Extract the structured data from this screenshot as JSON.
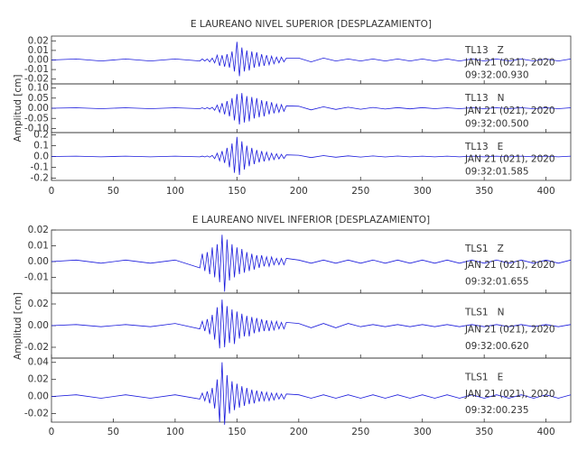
{
  "chart_data": [
    {
      "type": "line",
      "title": "E LAUREANO NIVEL SUPERIOR [DESPLAZAMIENTO]",
      "ylabel": "Amplitud [cm]",
      "xlim": [
        0,
        420
      ],
      "xticks": [
        0,
        50,
        100,
        150,
        200,
        250,
        300,
        350,
        400
      ],
      "x": [
        0,
        20,
        40,
        60,
        80,
        100,
        120,
        122,
        124,
        126,
        128,
        130,
        132,
        134,
        136,
        138,
        140,
        142,
        144,
        146,
        148,
        150,
        152,
        154,
        156,
        158,
        160,
        162,
        164,
        166,
        168,
        170,
        172,
        174,
        176,
        178,
        180,
        182,
        184,
        186,
        188,
        190,
        200,
        210,
        220,
        230,
        240,
        250,
        260,
        270,
        280,
        290,
        300,
        310,
        320,
        330,
        340,
        350,
        360,
        370,
        380,
        390,
        400,
        410,
        420
      ],
      "panels": [
        {
          "annotations": [
            "TL13   Z",
            "JAN 21 (021), 2020",
            "09:32:00.930"
          ],
          "color": "#1a1adc",
          "ylim": [
            -0.025,
            0.025
          ],
          "yticks": [
            {
              "value": 0.02,
              "label": "0.02"
            },
            0.01,
            {
              "value": 0,
              "label": "0.00"
            },
            -0.01,
            -0.02
          ],
          "values": [
            0,
            0.001,
            -0.001,
            0.001,
            -0.001,
            0.001,
            -0.001,
            0.001,
            -0.001,
            0.001,
            -0.002,
            0.002,
            -0.003,
            0.005,
            -0.006,
            0.005,
            -0.007,
            0.006,
            -0.008,
            0.009,
            -0.012,
            0.019,
            -0.017,
            0.013,
            -0.012,
            0.01,
            -0.011,
            0.009,
            -0.008,
            0.008,
            -0.007,
            0.006,
            -0.006,
            0.005,
            -0.005,
            0.004,
            -0.004,
            0.003,
            -0.003,
            0.003,
            -0.002,
            0.002,
            0.002,
            -0.002,
            0.002,
            -0.001,
            0.001,
            -0.001,
            0.001,
            -0.001,
            0.001,
            -0.001,
            0.001,
            -0.001,
            0.001,
            -0.001,
            0.001,
            -0.001,
            0.001,
            -0.001,
            0.001,
            -0.001,
            0.001,
            -0.001,
            0.001
          ]
        },
        {
          "annotations": [
            "TL13   N",
            "JAN 21 (021), 2020",
            "09:32:00.500"
          ],
          "color": "#1a1adc",
          "ylim": [
            -0.12,
            0.12
          ],
          "yticks": [
            {
              "value": 0.1,
              "label": "0.10"
            },
            0.05,
            {
              "value": 0,
              "label": "0.00"
            },
            -0.05,
            {
              "value": -0.1,
              "label": "-0.10"
            }
          ],
          "values": [
            0,
            0.002,
            -0.002,
            0.002,
            -0.002,
            0.002,
            -0.002,
            0.002,
            -0.003,
            0.003,
            -0.004,
            0.005,
            -0.01,
            0.015,
            -0.02,
            0.025,
            -0.03,
            0.035,
            -0.04,
            0.05,
            -0.06,
            0.07,
            -0.08,
            0.075,
            -0.07,
            0.06,
            -0.065,
            0.055,
            -0.05,
            0.05,
            -0.045,
            0.04,
            -0.04,
            0.035,
            -0.03,
            0.03,
            -0.025,
            0.02,
            -0.02,
            0.018,
            -0.015,
            0.012,
            0.01,
            -0.008,
            0.007,
            -0.006,
            0.005,
            -0.005,
            0.004,
            -0.004,
            0.003,
            -0.003,
            0.003,
            -0.002,
            0.002,
            -0.002,
            0.002,
            -0.002,
            0.002,
            -0.002,
            0.002,
            -0.002,
            0.002,
            -0.002,
            0.002
          ]
        },
        {
          "annotations": [
            "TL13   E",
            "JAN 21 (021), 2020",
            "09:32:01.585"
          ],
          "color": "#1a1adc",
          "ylim": [
            -0.22,
            0.22
          ],
          "yticks": [
            0.2,
            0.1,
            {
              "value": 0,
              "label": "0.0"
            },
            -0.1,
            -0.2
          ],
          "values": [
            0,
            0.003,
            -0.003,
            0.003,
            -0.003,
            0.003,
            -0.003,
            0.003,
            -0.004,
            0.005,
            -0.006,
            0.01,
            -0.02,
            0.03,
            -0.04,
            0.05,
            -0.06,
            0.08,
            -0.1,
            0.12,
            -0.15,
            0.18,
            -0.17,
            0.14,
            -0.12,
            0.1,
            -0.09,
            0.08,
            -0.07,
            0.06,
            -0.055,
            0.05,
            -0.045,
            0.04,
            -0.035,
            0.03,
            -0.028,
            0.025,
            -0.022,
            0.02,
            -0.018,
            0.015,
            0.012,
            -0.01,
            0.008,
            -0.007,
            0.006,
            -0.005,
            0.005,
            -0.004,
            0.004,
            -0.003,
            0.003,
            -0.003,
            0.003,
            -0.003,
            0.003,
            -0.003,
            0.003,
            -0.003,
            0.003,
            -0.003,
            0.003,
            -0.003,
            0.003
          ]
        }
      ]
    },
    {
      "type": "line",
      "title": "E LAUREANO NIVEL INFERIOR [DESPLAZAMIENTO]",
      "ylabel": "Amplitud [cm]",
      "xlim": [
        0,
        420
      ],
      "xticks": [
        0,
        50,
        100,
        150,
        200,
        250,
        300,
        350,
        400
      ],
      "x": [
        0,
        20,
        40,
        60,
        80,
        100,
        120,
        122,
        124,
        126,
        128,
        130,
        132,
        134,
        136,
        138,
        140,
        142,
        144,
        146,
        148,
        150,
        152,
        154,
        156,
        158,
        160,
        162,
        164,
        166,
        168,
        170,
        172,
        174,
        176,
        178,
        180,
        182,
        184,
        186,
        188,
        190,
        200,
        210,
        220,
        230,
        240,
        250,
        260,
        270,
        280,
        290,
        300,
        310,
        320,
        330,
        340,
        350,
        360,
        370,
        380,
        390,
        400,
        410,
        420
      ],
      "panels": [
        {
          "annotations": [
            "TLS1   Z",
            "JAN 21 (021), 2020",
            "09:32:01.655"
          ],
          "color": "#1a1adc",
          "ylim": [
            -0.02,
            0.02
          ],
          "yticks": [
            {
              "value": 0.02,
              "label": "0.02"
            },
            0.01,
            {
              "value": 0,
              "label": "0.00"
            },
            -0.01
          ],
          "values": [
            0,
            0.001,
            -0.001,
            0.001,
            -0.001,
            0.001,
            -0.004,
            0.005,
            -0.006,
            0.006,
            -0.008,
            0.009,
            -0.01,
            0.011,
            -0.013,
            0.017,
            -0.019,
            0.014,
            -0.012,
            0.011,
            -0.01,
            0.009,
            -0.008,
            0.008,
            -0.007,
            0.006,
            -0.006,
            0.005,
            -0.005,
            0.004,
            -0.004,
            0.004,
            -0.003,
            0.003,
            -0.003,
            0.003,
            -0.002,
            0.002,
            -0.002,
            0.002,
            -0.002,
            0.002,
            0.001,
            -0.001,
            0.001,
            -0.001,
            0.001,
            -0.001,
            0.001,
            -0.001,
            0.001,
            -0.001,
            0.001,
            -0.001,
            0.001,
            -0.001,
            0.001,
            -0.001,
            0.001,
            -0.001,
            0.001,
            -0.001,
            0.001,
            -0.001,
            0.001
          ]
        },
        {
          "annotations": [
            "TLS1   N",
            "JAN 21 (021), 2020",
            "09:32:00.620"
          ],
          "color": "#1a1adc",
          "ylim": [
            -0.03,
            0.03
          ],
          "yticks": [
            0.02,
            {
              "value": 0,
              "label": "0.00"
            },
            -0.02
          ],
          "values": [
            0,
            0.001,
            -0.001,
            0.001,
            -0.001,
            0.002,
            -0.003,
            0.004,
            -0.005,
            0.006,
            -0.008,
            0.01,
            -0.013,
            0.017,
            -0.021,
            0.024,
            -0.02,
            0.018,
            -0.016,
            0.015,
            -0.017,
            0.013,
            -0.012,
            0.011,
            -0.01,
            0.009,
            -0.01,
            0.008,
            -0.007,
            0.007,
            -0.006,
            0.006,
            -0.005,
            0.005,
            -0.005,
            0.004,
            -0.004,
            0.004,
            -0.003,
            0.003,
            -0.003,
            0.003,
            0.002,
            -0.002,
            0.002,
            -0.002,
            0.002,
            -0.001,
            0.001,
            -0.001,
            0.001,
            -0.001,
            0.001,
            -0.001,
            0.001,
            -0.001,
            0.001,
            -0.001,
            0.001,
            -0.001,
            0.001,
            -0.001,
            0.001,
            -0.001,
            0.001
          ]
        },
        {
          "annotations": [
            "TLS1   E",
            "JAN 21 (021), 2020",
            "09:32:00.235"
          ],
          "color": "#1a1adc",
          "ylim": [
            -0.03,
            0.045
          ],
          "yticks": [
            0.04,
            0.02,
            {
              "value": 0,
              "label": "0.00"
            },
            -0.02
          ],
          "values": [
            0,
            0.002,
            -0.002,
            0.002,
            -0.002,
            0.002,
            -0.003,
            0.004,
            -0.005,
            0.006,
            -0.008,
            0.01,
            -0.014,
            0.02,
            -0.03,
            0.04,
            -0.033,
            0.025,
            -0.02,
            0.018,
            -0.016,
            0.015,
            -0.013,
            0.012,
            -0.011,
            0.01,
            -0.009,
            0.008,
            -0.008,
            0.007,
            -0.006,
            0.006,
            -0.005,
            0.005,
            -0.005,
            0.004,
            -0.004,
            0.004,
            -0.003,
            0.003,
            -0.003,
            0.003,
            0.002,
            -0.002,
            0.002,
            -0.002,
            0.002,
            -0.002,
            0.002,
            -0.002,
            0.002,
            -0.002,
            0.002,
            -0.002,
            0.002,
            -0.002,
            0.002,
            -0.002,
            0.002,
            -0.002,
            0.002,
            -0.002,
            0.002,
            -0.002,
            0.002
          ]
        }
      ]
    }
  ]
}
